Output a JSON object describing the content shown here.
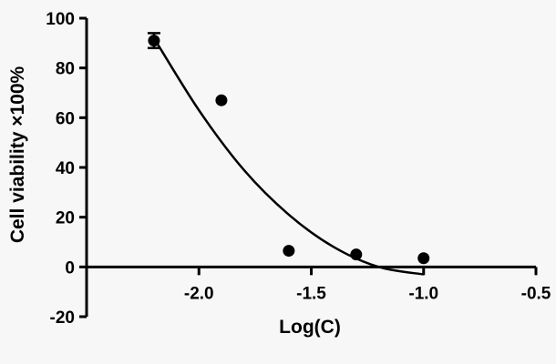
{
  "chart_data": {
    "type": "scatter",
    "xlabel": "Log(C)",
    "ylabel": "Cell viability  ×100%",
    "xlim": [
      -2.5,
      -0.5
    ],
    "ylim": [
      -20,
      100
    ],
    "x_ticks": [
      -2.0,
      -1.5,
      -1.0,
      -0.5
    ],
    "x_tick_labels": [
      "-2.0",
      "-1.5",
      "-1.0",
      "-0.5"
    ],
    "y_ticks": [
      -20,
      0,
      20,
      40,
      60,
      80,
      100
    ],
    "y_tick_labels": [
      "-20",
      "0",
      "20",
      "40",
      "60",
      "80",
      "100"
    ],
    "points": [
      {
        "x": -2.2,
        "y": 91,
        "err": 3
      },
      {
        "x": -1.9,
        "y": 67
      },
      {
        "x": -1.6,
        "y": 6.5
      },
      {
        "x": -1.3,
        "y": 5
      },
      {
        "x": -1.0,
        "y": 3.5
      }
    ],
    "fit_curve": [
      {
        "x": -2.2,
        "y": 92
      },
      {
        "x": -2.0,
        "y": 63
      },
      {
        "x": -1.8,
        "y": 39
      },
      {
        "x": -1.6,
        "y": 21
      },
      {
        "x": -1.4,
        "y": 8
      },
      {
        "x": -1.2,
        "y": 0
      },
      {
        "x": -1.0,
        "y": -3
      }
    ],
    "grid": false,
    "colors": {
      "marker": "#000000",
      "line": "#000000",
      "background": "#f7f7f7"
    }
  }
}
